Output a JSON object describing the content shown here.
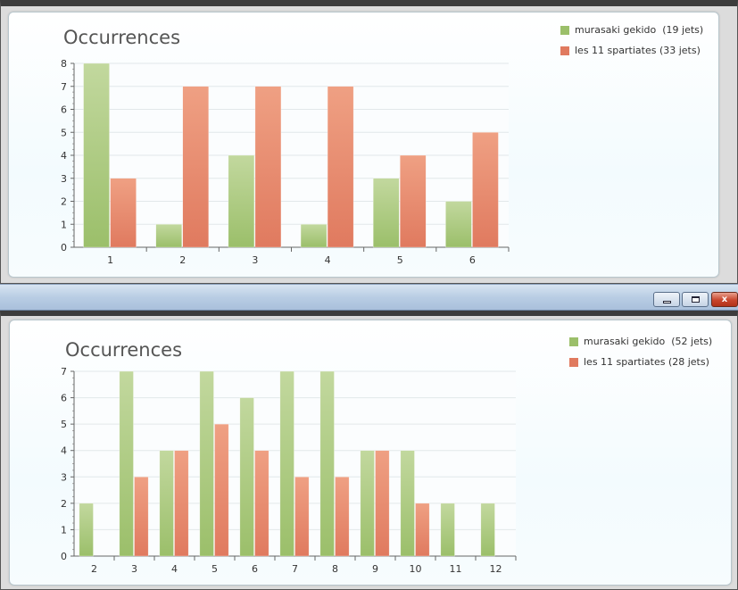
{
  "colors": {
    "series1": "#9bbf6a",
    "series2": "#e07a5f",
    "grid": "#e2e8ea",
    "axis": "#666666"
  },
  "titlebar": {
    "minimize_icon": "minimize-icon",
    "maximize_icon": "maximize-icon",
    "close_icon": "close-icon",
    "close_label": "x"
  },
  "chart_data": [
    {
      "type": "bar",
      "title": "Occurrences",
      "categories": [
        "1",
        "2",
        "3",
        "4",
        "5",
        "6"
      ],
      "ylim": [
        0,
        8
      ],
      "yticks": [
        "0",
        "1",
        "2",
        "3",
        "4",
        "5",
        "6",
        "7",
        "8"
      ],
      "grid": true,
      "legend_position": "top-right",
      "series": [
        {
          "name": "murasaki gekido  (19 jets)",
          "values": [
            8,
            1,
            4,
            1,
            3,
            2
          ]
        },
        {
          "name": "les 11 spartiates (33 jets)",
          "values": [
            3,
            7,
            7,
            7,
            4,
            5
          ]
        }
      ]
    },
    {
      "type": "bar",
      "title": "Occurrences",
      "categories": [
        "2",
        "3",
        "4",
        "5",
        "6",
        "7",
        "8",
        "9",
        "10",
        "11",
        "12"
      ],
      "ylim": [
        0,
        7
      ],
      "yticks": [
        "0",
        "1",
        "2",
        "3",
        "4",
        "5",
        "6",
        "7"
      ],
      "grid": true,
      "legend_position": "top-right",
      "series": [
        {
          "name": "murasaki gekido  (52 jets)",
          "values": [
            2,
            7,
            4,
            7,
            6,
            7,
            7,
            4,
            4,
            2,
            2
          ]
        },
        {
          "name": "les 11 spartiates (28 jets)",
          "values": [
            0,
            3,
            4,
            5,
            4,
            3,
            3,
            4,
            2,
            0,
            0
          ]
        }
      ]
    }
  ]
}
